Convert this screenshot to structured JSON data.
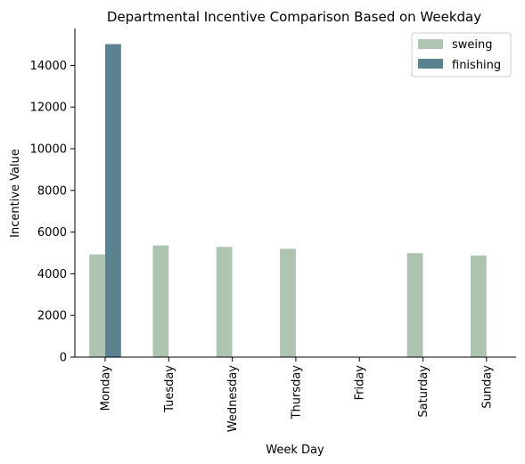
{
  "chart_data": {
    "type": "bar",
    "title": "Departmental Incentive Comparison Based on Weekday",
    "xlabel": "Week Day",
    "ylabel": "Incentive Value",
    "categories": [
      "Monday",
      "Tuesday",
      "Wednesday",
      "Thursday",
      "Friday",
      "Saturday",
      "Sunday"
    ],
    "series": [
      {
        "name": "sweing",
        "color": "#adc4b0",
        "values": [
          4930,
          5360,
          5290,
          5200,
          null,
          4990,
          4880
        ]
      },
      {
        "name": "finishing",
        "color": "#5a8290",
        "values": [
          15020,
          null,
          null,
          null,
          null,
          null,
          null
        ]
      }
    ],
    "yticks": [
      0,
      2000,
      4000,
      6000,
      8000,
      10000,
      12000,
      14000
    ],
    "ylim": [
      0,
      15770
    ],
    "grid": false,
    "legend_position": "top-right"
  }
}
